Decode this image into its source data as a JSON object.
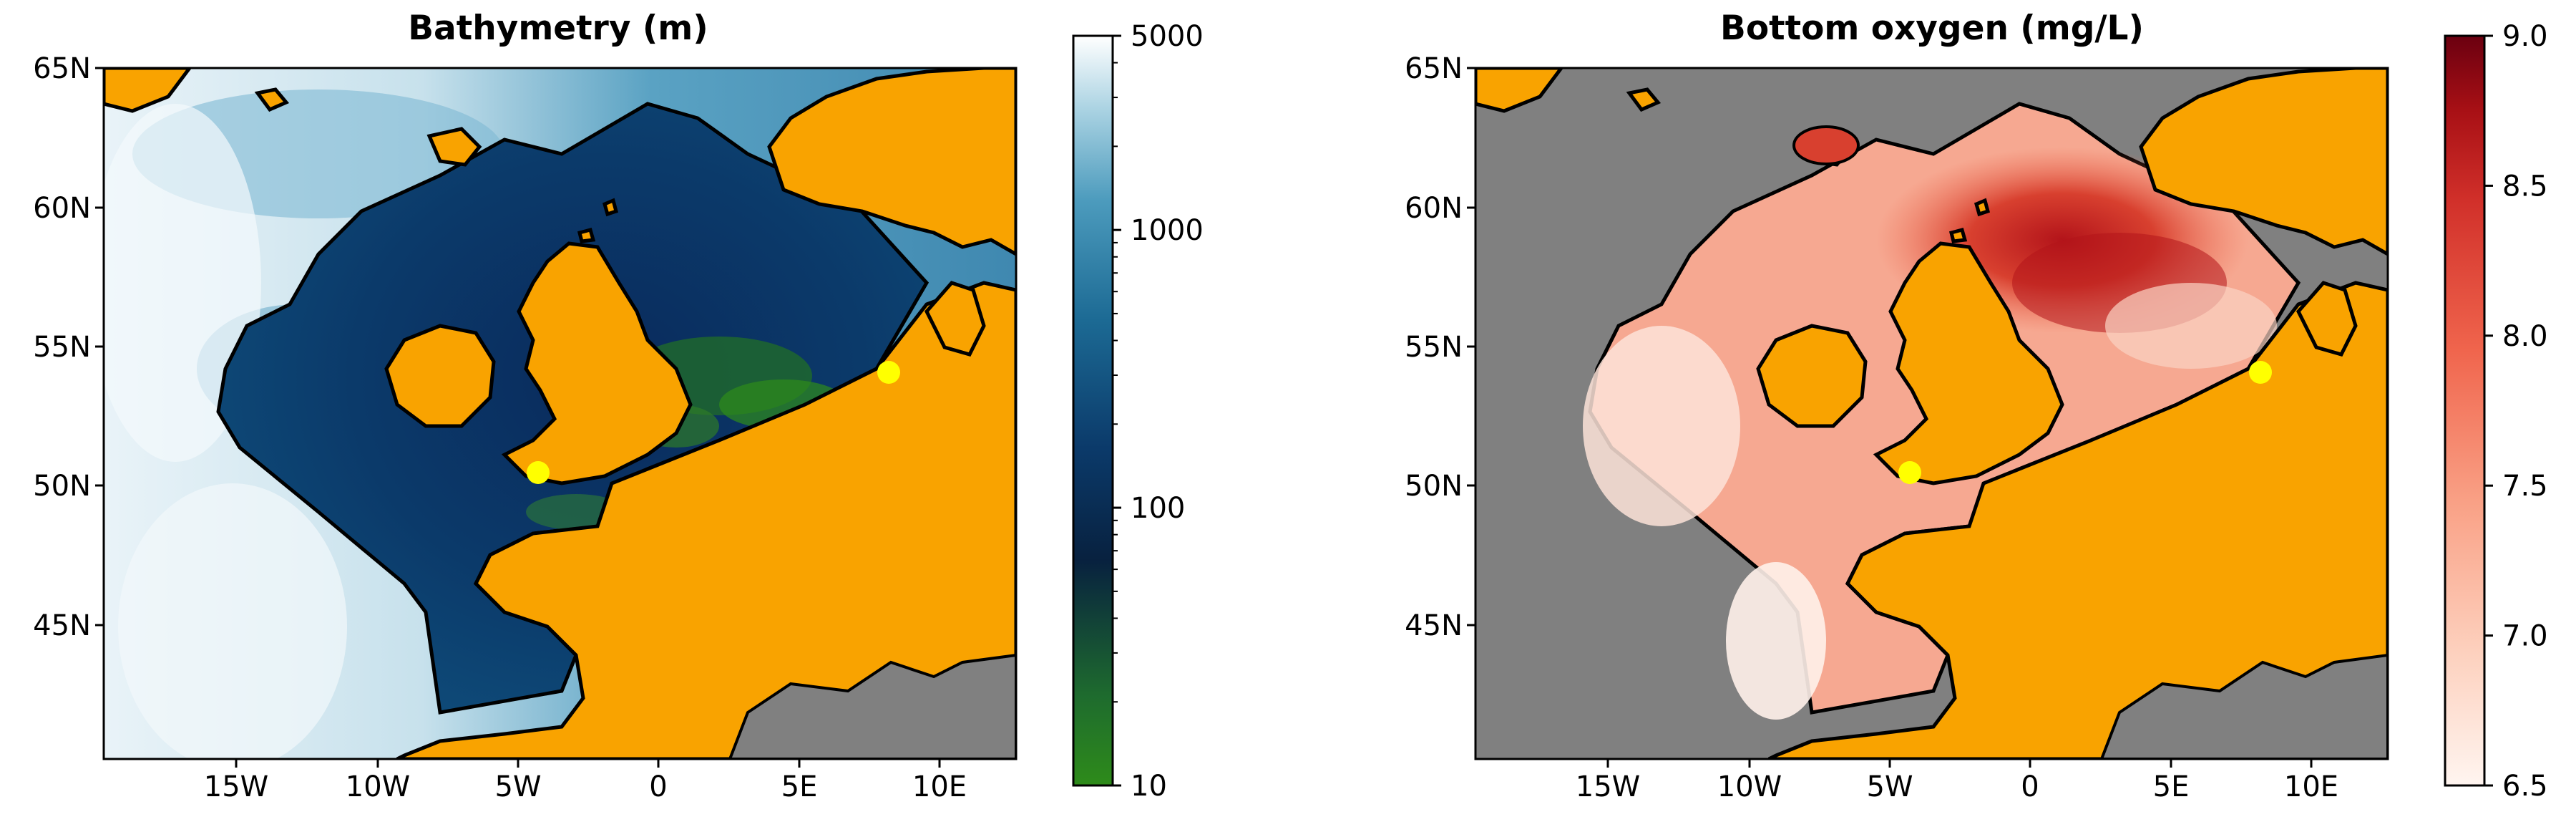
{
  "panels": [
    {
      "title": "Bathymetry (m)",
      "y_ticks": [
        "65N",
        "60N",
        "55N",
        "50N",
        "45N"
      ],
      "x_ticks": [
        "15W",
        "10W",
        "5W",
        "0",
        "5E",
        "10E"
      ],
      "colorbar": {
        "scale": "log",
        "ticks": [
          "5000",
          "1000",
          "100",
          "10"
        ],
        "colors": [
          "#2e8b1a",
          "#1e6b2e",
          "#08213f",
          "#0b3a6a",
          "#1c6a94",
          "#4c9bbd",
          "#a9d2e2",
          "#ffffff"
        ]
      }
    },
    {
      "title": "Bottom oxygen (mg/L)",
      "y_ticks": [
        "65N",
        "60N",
        "55N",
        "50N",
        "45N"
      ],
      "x_ticks": [
        "15W",
        "10W",
        "5W",
        "0",
        "5E",
        "10E"
      ],
      "colorbar": {
        "scale": "linear",
        "ticks": [
          "9.0",
          "8.5",
          "8.0",
          "7.5",
          "7.0",
          "6.5"
        ],
        "colors": [
          "#fff5f0",
          "#fdd0bd",
          "#f9a085",
          "#f0654d",
          "#d1302a",
          "#a81015",
          "#6b0010"
        ]
      }
    }
  ],
  "colors": {
    "land": "#f9a300",
    "masked": "#808080",
    "coastline": "#000000",
    "marker": "#ffff00"
  }
}
